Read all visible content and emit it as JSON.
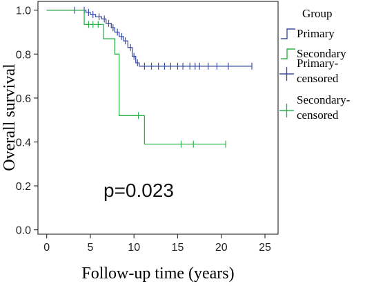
{
  "chart_data": {
    "type": "line",
    "subtype": "kaplan-meier step",
    "xlabel": "Follow-up time (years)",
    "ylabel": "Overall survival",
    "xlim": [
      -1,
      26.5
    ],
    "ylim": [
      -0.02,
      1.04
    ],
    "xticks": [
      0,
      5,
      10,
      15,
      20,
      25
    ],
    "xtick_labels": [
      "0",
      "5",
      "10",
      "15",
      "20",
      "25"
    ],
    "yticks": [
      0.0,
      0.2,
      0.4,
      0.6,
      0.8,
      1.0
    ],
    "ytick_labels": [
      "0.0",
      "0.2",
      "0.4",
      "0.6",
      "0.8",
      "1.0"
    ],
    "grid": false,
    "legend_title": "Group",
    "legend_position": "right, outside plot",
    "annotation": "p=0.023",
    "series": [
      {
        "name": "Primary",
        "color": "#3a4fa8",
        "steps": [
          [
            0,
            1.0
          ],
          [
            4.5,
            0.99
          ],
          [
            5.0,
            0.98
          ],
          [
            5.6,
            0.97
          ],
          [
            6.3,
            0.96
          ],
          [
            6.8,
            0.94
          ],
          [
            7.4,
            0.92
          ],
          [
            7.8,
            0.9
          ],
          [
            8.3,
            0.88
          ],
          [
            8.8,
            0.86
          ],
          [
            9.3,
            0.83
          ],
          [
            9.8,
            0.79
          ],
          [
            10.2,
            0.76
          ],
          [
            10.6,
            0.745
          ],
          [
            23.5,
            0.745
          ]
        ],
        "censored": [
          [
            3.2,
            1.0
          ],
          [
            4.3,
            1.0
          ],
          [
            4.8,
            0.99
          ],
          [
            5.3,
            0.98
          ],
          [
            6.0,
            0.97
          ],
          [
            6.6,
            0.96
          ],
          [
            7.1,
            0.94
          ],
          [
            7.6,
            0.92
          ],
          [
            8.1,
            0.9
          ],
          [
            8.6,
            0.88
          ],
          [
            9.0,
            0.86
          ],
          [
            9.6,
            0.83
          ],
          [
            10.0,
            0.79
          ],
          [
            10.4,
            0.76
          ],
          [
            11.2,
            0.745
          ],
          [
            12.0,
            0.745
          ],
          [
            12.8,
            0.745
          ],
          [
            13.5,
            0.745
          ],
          [
            14.2,
            0.745
          ],
          [
            15.0,
            0.745
          ],
          [
            15.6,
            0.745
          ],
          [
            16.4,
            0.745
          ],
          [
            17.0,
            0.745
          ],
          [
            17.5,
            0.745
          ],
          [
            18.5,
            0.745
          ],
          [
            19.5,
            0.745
          ],
          [
            20.8,
            0.745
          ],
          [
            23.5,
            0.745
          ]
        ]
      },
      {
        "name": "Secondary",
        "color": "#2db34a",
        "steps": [
          [
            0,
            1.0
          ],
          [
            4.3,
            0.935
          ],
          [
            6.5,
            0.87
          ],
          [
            7.8,
            0.8
          ],
          [
            8.3,
            0.52
          ],
          [
            11.2,
            0.39
          ],
          [
            20.5,
            0.39
          ]
        ],
        "censored": [
          [
            4.8,
            0.935
          ],
          [
            5.3,
            0.935
          ],
          [
            5.9,
            0.935
          ],
          [
            10.5,
            0.52
          ],
          [
            15.4,
            0.39
          ],
          [
            16.8,
            0.39
          ],
          [
            20.5,
            0.39
          ]
        ]
      }
    ],
    "legend_entries": [
      {
        "label": "Primary",
        "kind": "line",
        "color": "#3a4fa8"
      },
      {
        "label": "Secondary",
        "kind": "line",
        "color": "#2db34a"
      },
      {
        "label": "Primary-censored",
        "kind": "censor",
        "color": "#3a4fa8"
      },
      {
        "label": "Secondary-censored",
        "kind": "censor",
        "color": "#2db34a"
      }
    ]
  }
}
